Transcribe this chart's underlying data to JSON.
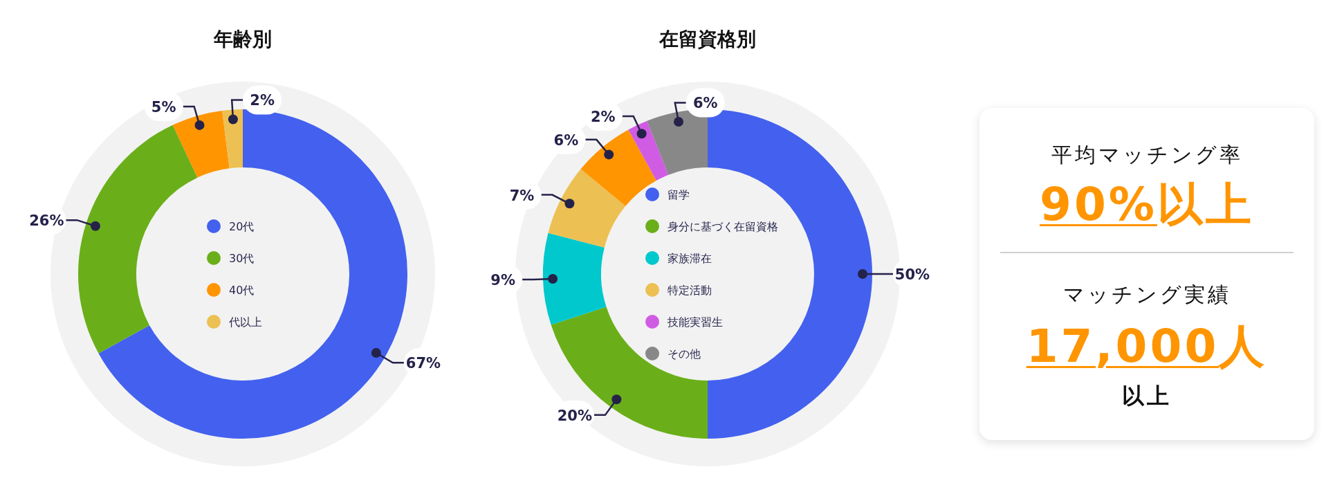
{
  "chart_data": [
    {
      "type": "donut",
      "title": "年齢別",
      "categories": [
        "20代",
        "30代",
        "40代",
        "代以上"
      ],
      "values": [
        67,
        26,
        5,
        2
      ],
      "colors": [
        "#4361ee",
        "#6aaf19",
        "#ff9500",
        "#ecc052"
      ],
      "value_labels": [
        "67%",
        "26%",
        "5%",
        "2%"
      ],
      "legend": "center"
    },
    {
      "type": "donut",
      "title": "在留資格別",
      "categories": [
        "留学",
        "身分に基づく在留資格",
        "家族滞在",
        "特定活動",
        null,
        "技能実習生",
        "その他"
      ],
      "values": [
        50,
        20,
        9,
        7,
        6,
        2,
        6
      ],
      "colors": [
        "#4361ee",
        "#6aaf19",
        "#00c8cc",
        "#ecc052",
        "#ff9500",
        "#d05ce3",
        "#888888"
      ],
      "value_labels": [
        "50%",
        "20%",
        "9%",
        "7%",
        "6%",
        "2%",
        "6%"
      ],
      "legend": "center"
    },
    {
      "type": "other",
      "annotations": [
        "平均マッチング率",
        "90%以上",
        "マッチング実績",
        "17,000人",
        "以上"
      ]
    }
  ]
}
